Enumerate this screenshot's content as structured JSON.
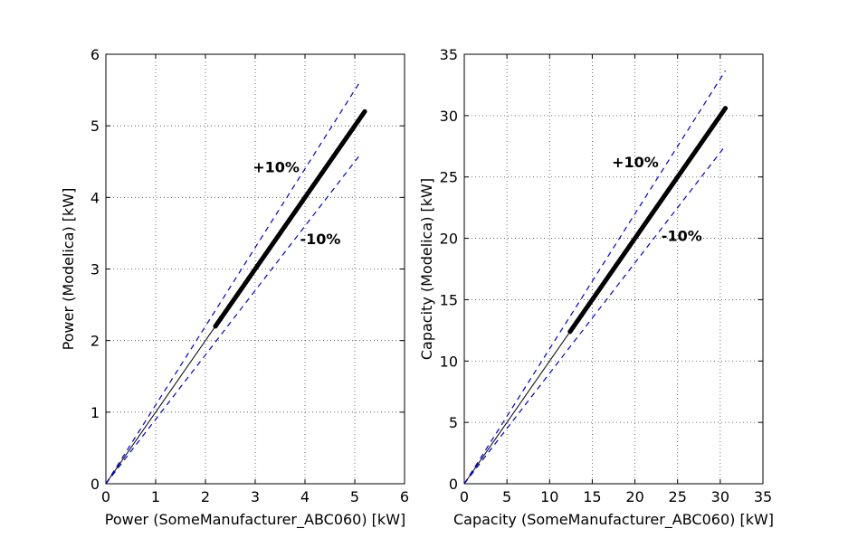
{
  "chart_data": [
    {
      "type": "scatter",
      "xlabel": "Power (SomeManufacturer_ABC060) [kW]",
      "ylabel": "Power (Modelica) [kW]",
      "xlim": [
        0,
        6
      ],
      "ylim": [
        0,
        6
      ],
      "xticks": [
        "0",
        "1",
        "2",
        "3",
        "4",
        "5",
        "6"
      ],
      "yticks": [
        "0",
        "1",
        "2",
        "3",
        "4",
        "5",
        "6"
      ],
      "grid": true,
      "reference_line": {
        "from": [
          0,
          0
        ],
        "to": [
          2.2,
          2.2
        ]
      },
      "bands": [
        {
          "label": "+10%",
          "factor": 1.1,
          "x_end": 5.1
        },
        {
          "label": "-10%",
          "factor": 0.9,
          "x_end": 5.1
        }
      ],
      "points": {
        "x_start": 2.2,
        "x_end": 5.2,
        "factor": 1.0,
        "count": 150
      },
      "annotations": [
        {
          "text": "+10%",
          "x": 2.95,
          "y": 4.35
        },
        {
          "text": "-10%",
          "x": 3.9,
          "y": 3.35
        }
      ]
    },
    {
      "type": "scatter",
      "xlabel": "Capacity (SomeManufacturer_ABC060) [kW]",
      "ylabel": "Capacity (Modelica) [kW]",
      "xlim": [
        0,
        35
      ],
      "ylim": [
        0,
        35
      ],
      "xticks": [
        "0",
        "5",
        "10",
        "15",
        "20",
        "25",
        "30",
        "35"
      ],
      "yticks": [
        "0",
        "5",
        "10",
        "15",
        "20",
        "25",
        "30",
        "35"
      ],
      "grid": true,
      "reference_line": {
        "from": [
          0,
          0
        ],
        "to": [
          12.4,
          12.4
        ]
      },
      "bands": [
        {
          "label": "+10%",
          "factor": 1.1,
          "x_end": 30.6
        },
        {
          "label": "-10%",
          "factor": 0.9,
          "x_end": 30.6
        }
      ],
      "points": {
        "x_start": 12.4,
        "x_end": 30.6,
        "factor": 1.0,
        "count": 150
      },
      "annotations": [
        {
          "text": "+10%",
          "x": 17.3,
          "y": 25.8
        },
        {
          "text": "-10%",
          "x": 23.1,
          "y": 19.8
        }
      ]
    }
  ]
}
